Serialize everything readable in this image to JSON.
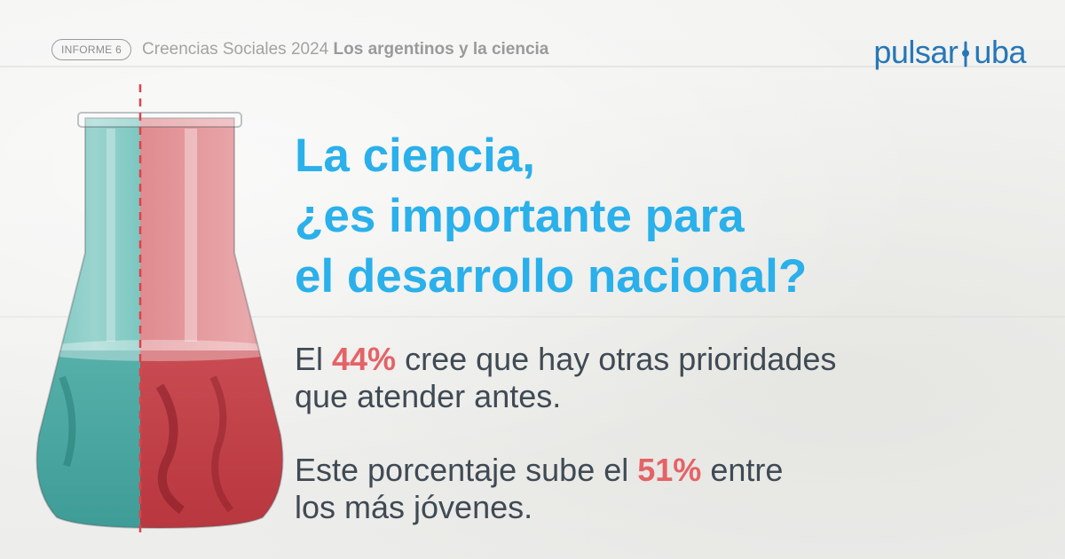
{
  "header": {
    "badge": "INFORME 6",
    "series": "Creencias Sociales 2024",
    "topic": "Los argentinos y la ciencia"
  },
  "logo": {
    "left": "pulsar",
    "right": "uba"
  },
  "title": {
    "line1": "La ciencia,",
    "line2": "¿es importante para",
    "line3": "el desarrollo nacional?"
  },
  "para1": {
    "pre": "El ",
    "pct": "44%",
    "post": " cree que hay otras prioridades",
    "line2": "que atender antes."
  },
  "para2": {
    "pre": "Este porcentaje sube el ",
    "pct": "51%",
    "post": " entre",
    "line2": "los más jóvenes."
  },
  "colors": {
    "title": "#2ab0ea",
    "highlight": "#e46366",
    "body": "#3f4a54",
    "logo": "#2577b8",
    "flask_left": "#5fb9b3",
    "flask_right": "#d46a6f",
    "divider": "#d9454c"
  },
  "icons": [
    "erlenmeyer-flask-image",
    "pulsar-logo-mark"
  ]
}
